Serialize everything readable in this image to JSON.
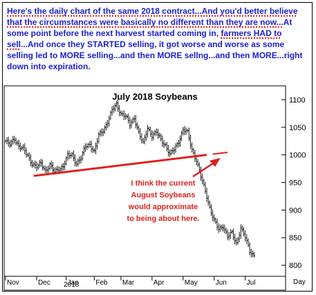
{
  "commentary": {
    "part1": "Here's the daily chart of the same 2018 contract...And you'd better believe that the circumstances were basically no different than they are now...",
    "part2": "At some point before the next harvest started coming in, ",
    "part3": "farmers HAD to sell",
    "part4": "...And once they STARTED selling, it got worse and worse as some selling led to MORE selling...and then MORE sellng...and then MORE...right down into expiration."
  },
  "colors": {
    "text_blue": "#1a1fd0",
    "annotation_red": "#e0201e",
    "price_bars": "#000000"
  },
  "chart_data": {
    "type": "ohlc",
    "title": "July 2018 Soybeans",
    "x_tick_labels": [
      "Nov",
      "Dec",
      "Jan",
      "Feb",
      "Mar",
      "Apr",
      "May",
      "Jun",
      "Jul"
    ],
    "x_year_label": "2018",
    "x_axis_label": "Day",
    "y_tick_labels": [
      "800",
      "850",
      "900",
      "950",
      "1000",
      "1050",
      "1100"
    ],
    "ylim": [
      785,
      1110
    ],
    "y_ticks": [
      800,
      850,
      900,
      950,
      1000,
      1050,
      1100
    ],
    "annotation": {
      "text_lines": [
        "I think the current",
        "August Soybeans",
        "would approximate",
        "to being about here."
      ]
    },
    "trendline": {
      "start": {
        "index": 19,
        "value": 962
      },
      "end": {
        "index": 136,
        "value": 1000
      }
    },
    "price_anchors": [
      [
        0,
        1025
      ],
      [
        3,
        1018
      ],
      [
        6,
        1030
      ],
      [
        9,
        1016
      ],
      [
        12,
        1010
      ],
      [
        15,
        998
      ],
      [
        18,
        985
      ],
      [
        21,
        978
      ],
      [
        24,
        984
      ],
      [
        27,
        972
      ],
      [
        30,
        982
      ],
      [
        33,
        968
      ],
      [
        36,
        975
      ],
      [
        39,
        980
      ],
      [
        42,
        998
      ],
      [
        45,
        1000
      ],
      [
        48,
        985
      ],
      [
        51,
        994
      ],
      [
        54,
        1015
      ],
      [
        57,
        1020
      ],
      [
        60,
        1005
      ],
      [
        63,
        1035
      ],
      [
        66,
        1045
      ],
      [
        69,
        1060
      ],
      [
        72,
        1080
      ],
      [
        75,
        1092
      ],
      [
        78,
        1075
      ],
      [
        81,
        1070
      ],
      [
        84,
        1055
      ],
      [
        87,
        1068
      ],
      [
        90,
        1040
      ],
      [
        93,
        1020
      ],
      [
        96,
        1050
      ],
      [
        99,
        1035
      ],
      [
        102,
        1040
      ],
      [
        105,
        1028
      ],
      [
        108,
        1018
      ],
      [
        111,
        1000
      ],
      [
        114,
        1010
      ],
      [
        117,
        1025
      ],
      [
        120,
        1045
      ],
      [
        123,
        1040
      ],
      [
        126,
        1010
      ],
      [
        129,
        990
      ],
      [
        132,
        960
      ],
      [
        135,
        935
      ],
      [
        138,
        905
      ],
      [
        141,
        880
      ],
      [
        144,
        865
      ],
      [
        147,
        872
      ],
      [
        150,
        852
      ],
      [
        153,
        858
      ],
      [
        156,
        840
      ],
      [
        159,
        868
      ],
      [
        162,
        850
      ],
      [
        165,
        826
      ],
      [
        168,
        818
      ]
    ]
  }
}
